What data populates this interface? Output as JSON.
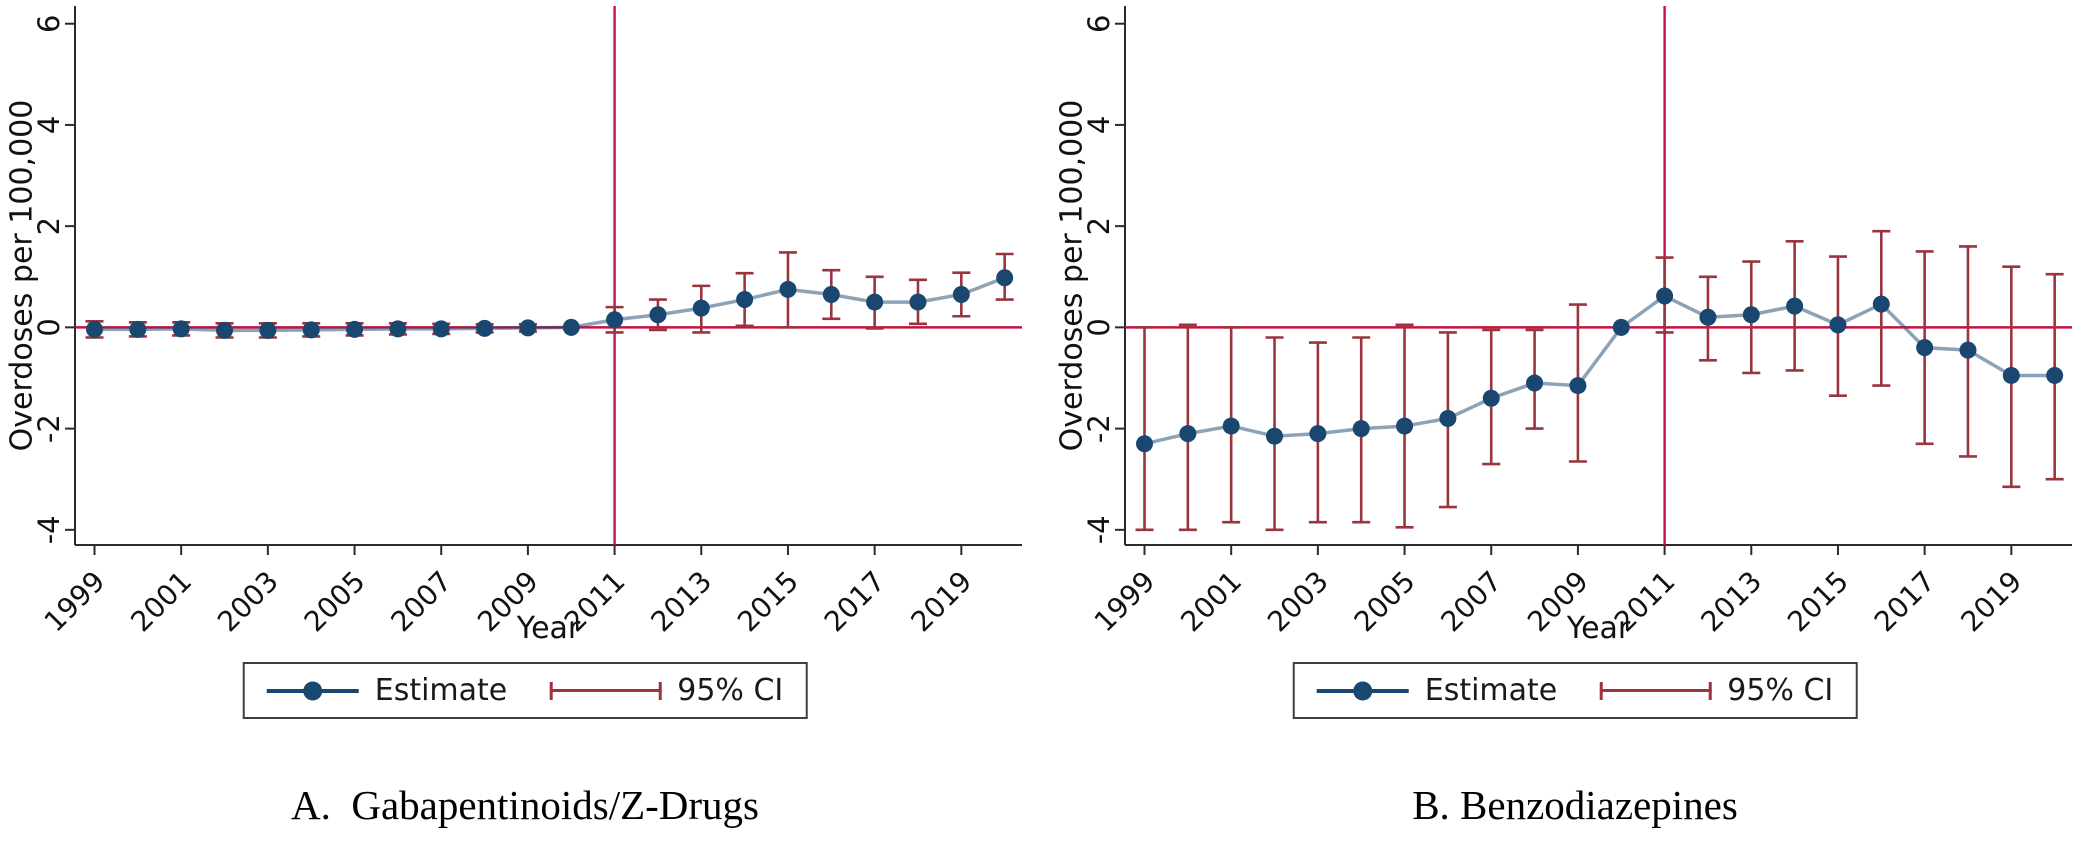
{
  "colors": {
    "estimate_navy": "#1a476f",
    "ci_maroon": "#9a353d",
    "reference_red": "#c41240",
    "axis_gray": "#2b2b2b",
    "text_black": "#111111"
  },
  "chart_data": [
    {
      "type": "line",
      "title": "A.  Gabapentinoids/Z-Drugs",
      "xlabel": "Year",
      "ylabel": "Overdoses per 100,000",
      "legend": [
        "Estimate",
        "95% CI"
      ],
      "legend_position": "bottom-center",
      "grid": false,
      "x": [
        1999,
        2000,
        2001,
        2002,
        2003,
        2004,
        2005,
        2006,
        2007,
        2008,
        2009,
        2010,
        2011,
        2012,
        2013,
        2014,
        2015,
        2016,
        2017,
        2018,
        2019,
        2020
      ],
      "series": [
        {
          "name": "Estimate",
          "values": [
            -0.04,
            -0.04,
            -0.03,
            -0.06,
            -0.06,
            -0.05,
            -0.04,
            -0.03,
            -0.03,
            -0.02,
            -0.01,
            0,
            0.15,
            0.25,
            0.38,
            0.55,
            0.75,
            0.65,
            0.5,
            0.5,
            0.65,
            0.98
          ]
        }
      ],
      "ci_lower": [
        -0.2,
        -0.18,
        -0.16,
        -0.2,
        -0.2,
        -0.18,
        -0.16,
        -0.14,
        -0.13,
        -0.1,
        -0.08,
        0,
        -0.1,
        -0.05,
        -0.1,
        0.03,
        0,
        0.17,
        -0.02,
        0.07,
        0.22,
        0.55
      ],
      "ci_upper": [
        0.12,
        0.1,
        0.1,
        0.08,
        0.08,
        0.08,
        0.08,
        0.08,
        0.07,
        0.06,
        0.06,
        0,
        0.4,
        0.55,
        0.82,
        1.07,
        1.48,
        1.13,
        1.0,
        0.94,
        1.08,
        1.45
      ],
      "reference_year_no_ci": 2010,
      "vline_x": 2011,
      "hline_y": 0,
      "xticks": [
        1999,
        2001,
        2003,
        2005,
        2007,
        2009,
        2011,
        2013,
        2015,
        2017,
        2019
      ],
      "yticks": [
        -4,
        -2,
        0,
        2,
        4,
        6
      ],
      "xlim": [
        1998.55,
        2020.4
      ],
      "ylim": [
        -4.3,
        6.35
      ]
    },
    {
      "type": "line",
      "title": "B. Benzodiazepines",
      "xlabel": "Year",
      "ylabel": "Overdoses per 100,000",
      "legend": [
        "Estimate",
        "95% CI"
      ],
      "legend_position": "bottom-center",
      "grid": false,
      "x": [
        1999,
        2000,
        2001,
        2002,
        2003,
        2004,
        2005,
        2006,
        2007,
        2008,
        2009,
        2010,
        2011,
        2012,
        2013,
        2014,
        2015,
        2016,
        2017,
        2018,
        2019,
        2020
      ],
      "series": [
        {
          "name": "Estimate",
          "values": [
            -2.3,
            -2.1,
            -1.95,
            -2.15,
            -2.1,
            -2.0,
            -1.95,
            -1.8,
            -1.4,
            -1.1,
            -1.15,
            0,
            0.62,
            0.2,
            0.25,
            0.42,
            0.05,
            0.46,
            -0.4,
            -0.45,
            -0.95,
            -0.95
          ]
        }
      ],
      "ci_lower": [
        -4.0,
        -4.0,
        -3.85,
        -4.0,
        -3.85,
        -3.85,
        -3.95,
        -3.55,
        -2.7,
        -2.0,
        -2.65,
        0,
        -0.1,
        -0.65,
        -0.9,
        -0.85,
        -1.35,
        -1.15,
        -2.3,
        -2.55,
        -3.15,
        -3.0
      ],
      "ci_upper": [
        0.0,
        0.05,
        0.0,
        -0.2,
        -0.3,
        -0.2,
        0.05,
        -0.1,
        -0.05,
        -0.05,
        0.45,
        0,
        1.38,
        1.0,
        1.3,
        1.7,
        1.4,
        1.9,
        1.5,
        1.6,
        1.2,
        1.05
      ],
      "reference_year_no_ci": 2010,
      "vline_x": 2011,
      "hline_y": 0,
      "xticks": [
        1999,
        2001,
        2003,
        2005,
        2007,
        2009,
        2011,
        2013,
        2015,
        2017,
        2019
      ],
      "yticks": [
        -4,
        -2,
        0,
        2,
        4,
        6
      ],
      "xlim": [
        1998.55,
        2020.4
      ],
      "ylim": [
        -4.3,
        6.35
      ]
    }
  ]
}
